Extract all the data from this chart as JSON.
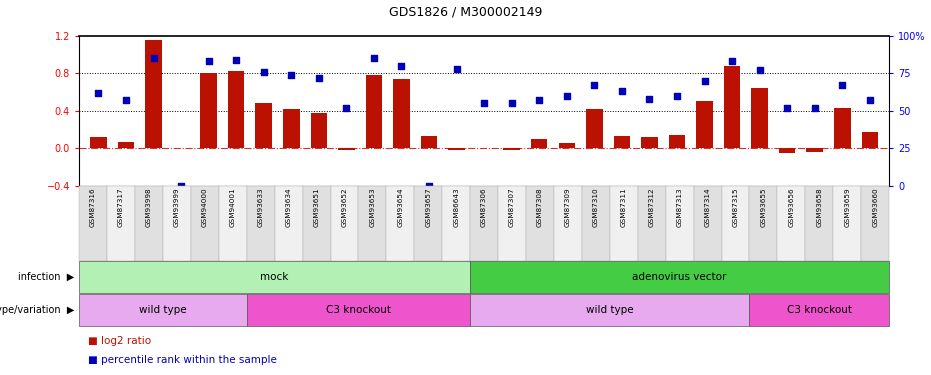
{
  "title": "GDS1826 / M300002149",
  "samples": [
    "GSM87316",
    "GSM87317",
    "GSM93998",
    "GSM93999",
    "GSM94000",
    "GSM94001",
    "GSM93633",
    "GSM93634",
    "GSM93651",
    "GSM93652",
    "GSM93653",
    "GSM93654",
    "GSM93657",
    "GSM86643",
    "GSM87306",
    "GSM87307",
    "GSM87308",
    "GSM87309",
    "GSM87310",
    "GSM87311",
    "GSM87312",
    "GSM87313",
    "GSM87314",
    "GSM87315",
    "GSM93655",
    "GSM93656",
    "GSM93658",
    "GSM93659",
    "GSM93660"
  ],
  "log2_ratio": [
    0.12,
    0.07,
    1.15,
    0.0,
    0.8,
    0.82,
    0.48,
    0.42,
    0.37,
    -0.02,
    0.78,
    0.74,
    0.13,
    -0.02,
    0.0,
    -0.02,
    0.1,
    0.05,
    0.42,
    0.13,
    0.12,
    0.14,
    0.5,
    0.88,
    0.64,
    -0.05,
    -0.04,
    0.43,
    0.17
  ],
  "percentile": [
    62,
    57,
    85,
    0,
    83,
    84,
    76,
    74,
    72,
    52,
    85,
    80,
    0,
    78,
    55,
    55,
    57,
    60,
    67,
    63,
    58,
    60,
    70,
    83,
    77,
    52,
    52,
    67,
    57
  ],
  "infection_groups": [
    {
      "label": "mock",
      "start": 0,
      "end": 14,
      "color": "#b3f0b3"
    },
    {
      "label": "adenovirus vector",
      "start": 14,
      "end": 29,
      "color": "#44cc44"
    }
  ],
  "genotype_groups": [
    {
      "label": "wild type",
      "start": 0,
      "end": 6,
      "color": "#e8aaee"
    },
    {
      "label": "C3 knockout",
      "start": 6,
      "end": 14,
      "color": "#ee55cc"
    },
    {
      "label": "wild type",
      "start": 14,
      "end": 24,
      "color": "#e8aaee"
    },
    {
      "label": "C3 knockout",
      "start": 24,
      "end": 29,
      "color": "#ee55cc"
    }
  ],
  "ylim_left": [
    -0.4,
    1.2
  ],
  "ylim_right": [
    0,
    100
  ],
  "bar_color": "#bb1100",
  "dot_color": "#0000bb",
  "zero_line_color": "#cc3333",
  "bg_color": "#ffffff"
}
